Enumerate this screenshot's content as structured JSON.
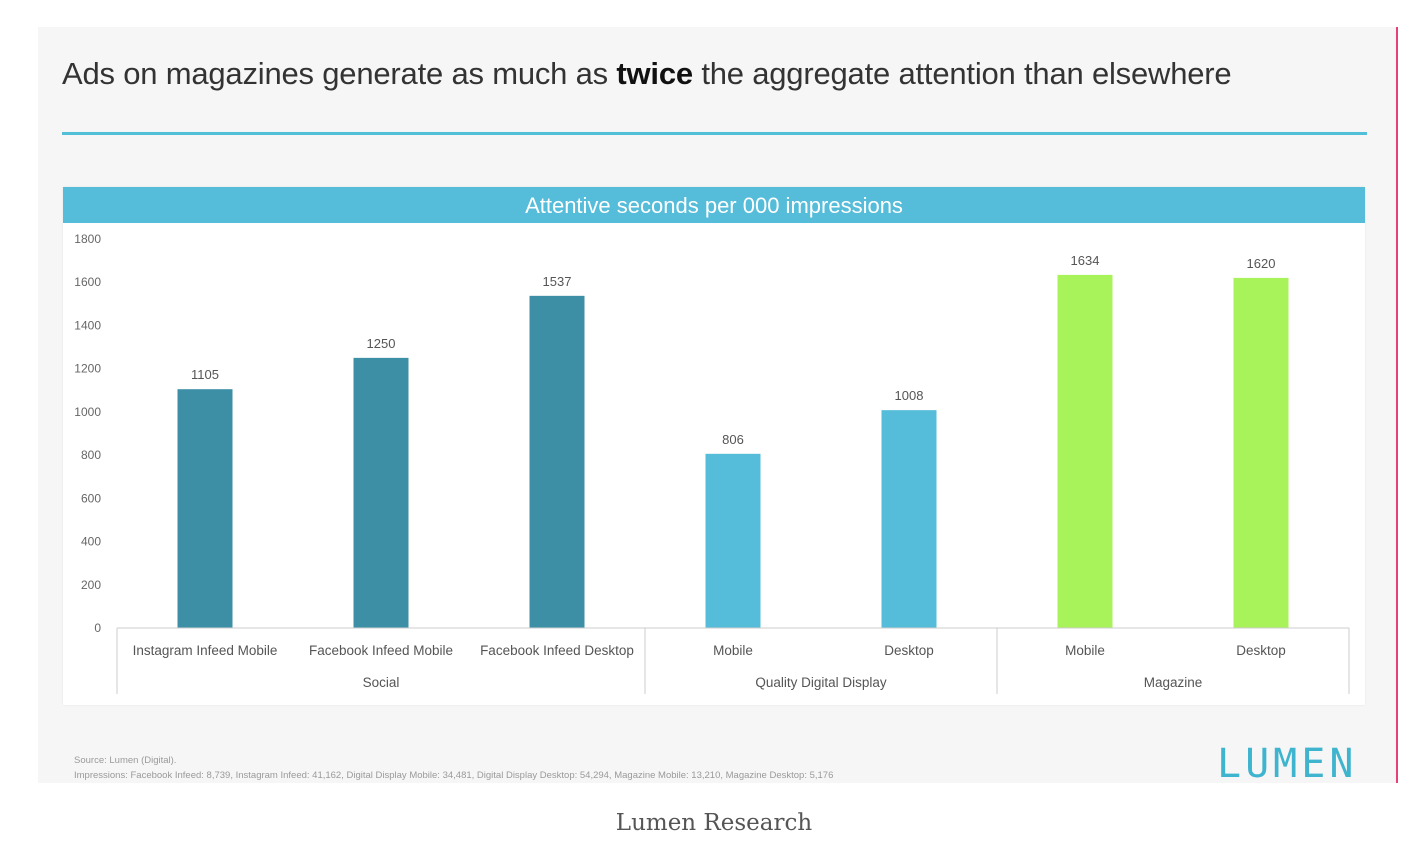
{
  "slide": {
    "headline_pre": "Ads on magazines generate as much as ",
    "headline_bold": "twice",
    "headline_post": " the aggregate attention than elsewhere",
    "footnote_source": "Source: Lumen (Digital).",
    "footnote_impressions": "Impressions: Facebook Infeed: 8,739, Instagram Infeed: 41,162, Digital Display Mobile: 34,481, Digital Display Desktop: 54,294, Magazine Mobile: 13,210, Magazine Desktop: 5,176",
    "logo": "LUMEN",
    "caption": "Lumen Research"
  },
  "colors": {
    "social": "#3d8fa6",
    "digital": "#55bcd9",
    "magazine": "#a8f25a",
    "accent": "#52bfd9",
    "edge": "#e6407a"
  },
  "chart_data": {
    "type": "bar",
    "title": "Attentive seconds per 000 impressions",
    "ylim": [
      0,
      1800
    ],
    "yticks": [
      0,
      200,
      400,
      600,
      800,
      1000,
      1200,
      1400,
      1600,
      1800
    ],
    "grid": false,
    "categories": [
      "Instagram Infeed Mobile",
      "Facebook Infeed Mobile",
      "Facebook Infeed Desktop",
      "Mobile",
      "Desktop",
      "Mobile",
      "Desktop"
    ],
    "values": [
      1105,
      1250,
      1537,
      806,
      1008,
      1634,
      1620
    ],
    "groups": [
      {
        "name": "Social",
        "start": 0,
        "end": 2,
        "color_key": "social"
      },
      {
        "name": "Quality Digital Display",
        "start": 3,
        "end": 4,
        "color_key": "digital"
      },
      {
        "name": "Magazine",
        "start": 5,
        "end": 6,
        "color_key": "magazine"
      }
    ]
  }
}
